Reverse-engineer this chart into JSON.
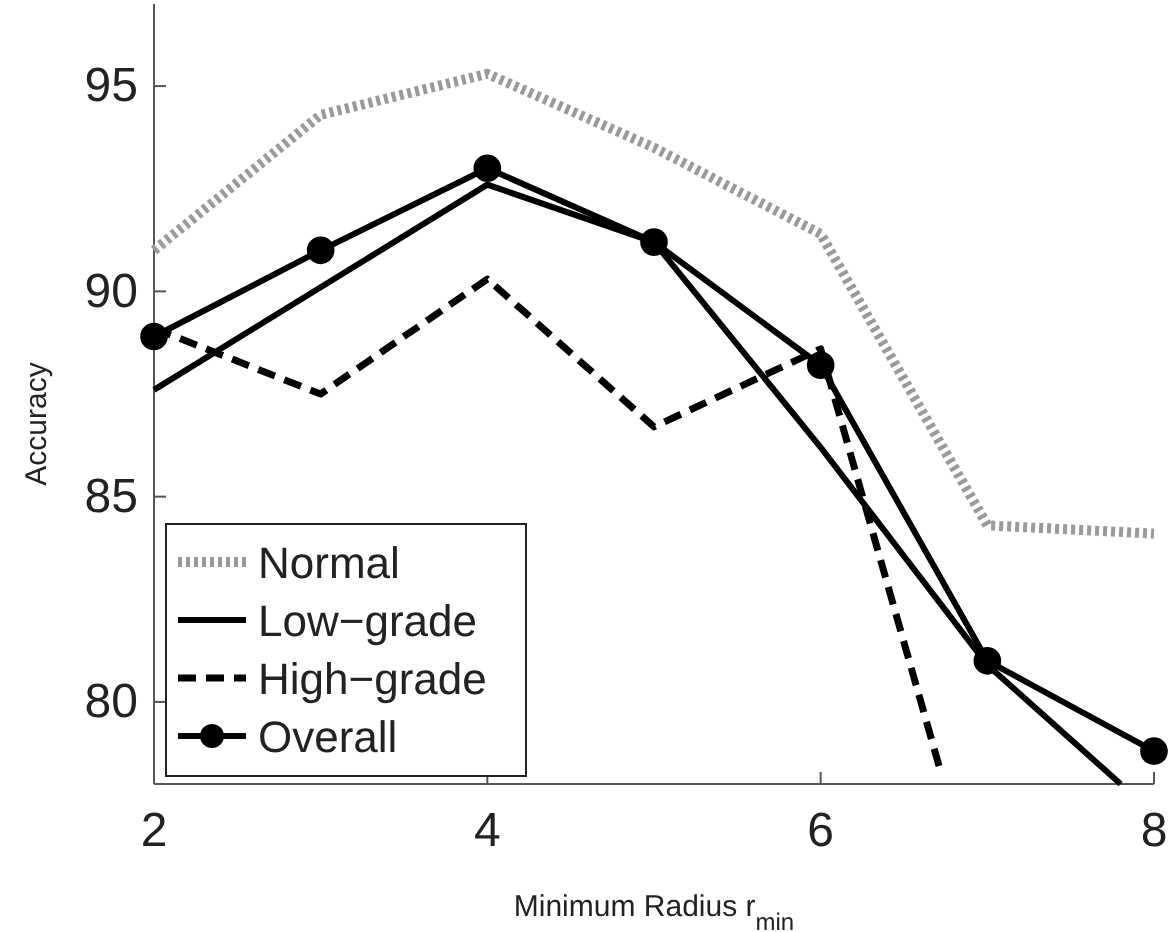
{
  "chart_data": {
    "type": "line",
    "xlabel": "Minimum Radius r$_{min}$",
    "ylabel": "Accuracy",
    "xlim": [
      2,
      8
    ],
    "ylim": [
      78,
      97
    ],
    "xticks": [
      2,
      4,
      6,
      8
    ],
    "yticks": [
      80,
      85,
      90,
      95
    ],
    "grid": false,
    "legend": "bottom left",
    "series": [
      {
        "name": "Normal",
        "color": "#9a9a9a",
        "line_style": "dotted",
        "marker": "none",
        "x": [
          2,
          3,
          4,
          5,
          6,
          7,
          8
        ],
        "values": [
          91.0,
          94.3,
          95.3,
          93.5,
          91.4,
          84.3,
          84.1
        ]
      },
      {
        "name": "Low−grade",
        "color": "#000000",
        "line_style": "solid",
        "marker": "none",
        "x": [
          2,
          3,
          4,
          5,
          6,
          7,
          7.8
        ],
        "values": [
          87.6,
          90.1,
          92.6,
          91.2,
          86.2,
          80.9,
          78.0
        ]
      },
      {
        "name": "High−grade",
        "color": "#000000",
        "line_style": "dashed",
        "marker": "none",
        "x": [
          2,
          3,
          4,
          5,
          6,
          6.72
        ],
        "values": [
          89.1,
          87.5,
          90.3,
          86.7,
          88.6,
          78.3
        ]
      },
      {
        "name": "Overall",
        "color": "#000000",
        "line_style": "solid",
        "marker": "circle",
        "x": [
          2,
          3,
          4,
          5,
          6,
          7,
          8
        ],
        "values": [
          88.9,
          91.0,
          93.0,
          91.2,
          88.2,
          81.0,
          78.8
        ]
      }
    ]
  }
}
